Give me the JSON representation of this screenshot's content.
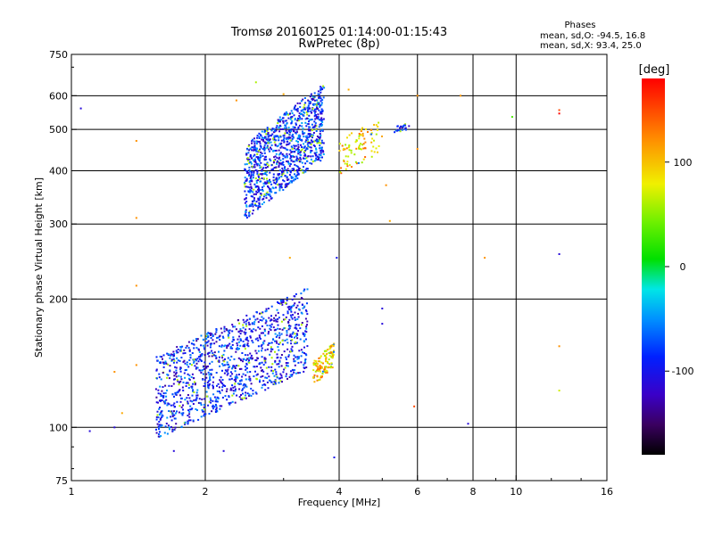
{
  "chart_data": {
    "type": "scatter",
    "title": "Tromsø 20160125 01:14:00-01:15:43",
    "subtitle": "RwPretec (8p)",
    "xlabel": "Frequency [MHz]",
    "ylabel": "Stationary phase Virtual Height [km]",
    "x_scale": "log",
    "y_scale": "log",
    "xlim": [
      1,
      16
    ],
    "ylim": [
      75,
      750
    ],
    "x_ticks": [
      1,
      2,
      4,
      6,
      8,
      10,
      16
    ],
    "y_ticks": [
      75,
      100,
      200,
      300,
      400,
      500,
      600,
      750
    ],
    "grid": true,
    "legend": {
      "heading": "Phases",
      "lines": [
        "mean, sd,O:  -94.5,  16.8",
        "mean, sd,X:   93.4,  25.0"
      ]
    },
    "colorbar": {
      "label": "[deg]",
      "range": [
        -180,
        180
      ],
      "ticks": [
        100,
        0,
        -100
      ]
    },
    "point_clusters": [
      {
        "fmin": 2.45,
        "fmax": 3.7,
        "hmin": 310,
        "hmax": 650,
        "phase_mean": -85,
        "count": 1100
      },
      {
        "fmin": 1.55,
        "fmax": 3.4,
        "hmin": 95,
        "hmax": 215,
        "phase_mean": -90,
        "count": 1200
      },
      {
        "fmin": 3.5,
        "fmax": 3.9,
        "hmin": 125,
        "hmax": 160,
        "phase_mean": 95,
        "count": 120
      },
      {
        "fmin": 4.0,
        "fmax": 5.0,
        "hmin": 380,
        "hmax": 560,
        "phase_mean": 95,
        "count": 90
      },
      {
        "fmin": 5.3,
        "fmax": 5.8,
        "hmin": 490,
        "hmax": 520,
        "phase_mean": -100,
        "count": 25
      }
    ],
    "sparse_points": [
      {
        "x": 1.05,
        "y": 560,
        "phase": -110
      },
      {
        "x": 1.4,
        "y": 470,
        "phase": 120
      },
      {
        "x": 1.4,
        "y": 310,
        "phase": 120
      },
      {
        "x": 1.4,
        "y": 215,
        "phase": 120
      },
      {
        "x": 1.4,
        "y": 140,
        "phase": 120
      },
      {
        "x": 1.25,
        "y": 135,
        "phase": 120
      },
      {
        "x": 1.3,
        "y": 108,
        "phase": 110
      },
      {
        "x": 1.1,
        "y": 98,
        "phase": -110
      },
      {
        "x": 1.25,
        "y": 100,
        "phase": -110
      },
      {
        "x": 1.7,
        "y": 88,
        "phase": -110
      },
      {
        "x": 2.2,
        "y": 88,
        "phase": -110
      },
      {
        "x": 2.35,
        "y": 585,
        "phase": 120
      },
      {
        "x": 3.0,
        "y": 605,
        "phase": 110
      },
      {
        "x": 4.2,
        "y": 620,
        "phase": 110
      },
      {
        "x": 3.95,
        "y": 250,
        "phase": -100
      },
      {
        "x": 3.9,
        "y": 85,
        "phase": -100
      },
      {
        "x": 5.1,
        "y": 370,
        "phase": 120
      },
      {
        "x": 5.2,
        "y": 305,
        "phase": 110
      },
      {
        "x": 5.0,
        "y": 190,
        "phase": -110
      },
      {
        "x": 5.0,
        "y": 175,
        "phase": -110
      },
      {
        "x": 6.0,
        "y": 450,
        "phase": 120
      },
      {
        "x": 6.0,
        "y": 600,
        "phase": 120
      },
      {
        "x": 5.9,
        "y": 112,
        "phase": 150
      },
      {
        "x": 7.5,
        "y": 600,
        "phase": 120
      },
      {
        "x": 7.8,
        "y": 102,
        "phase": -110
      },
      {
        "x": 8.5,
        "y": 250,
        "phase": 120
      },
      {
        "x": 9.8,
        "y": 535,
        "phase": 30
      },
      {
        "x": 12.5,
        "y": 555,
        "phase": 150
      },
      {
        "x": 12.5,
        "y": 545,
        "phase": 180
      },
      {
        "x": 12.5,
        "y": 255,
        "phase": -110
      },
      {
        "x": 12.5,
        "y": 155,
        "phase": 120
      },
      {
        "x": 12.5,
        "y": 122,
        "phase": 70
      },
      {
        "x": 2.6,
        "y": 645,
        "phase": 60
      },
      {
        "x": 3.1,
        "y": 250,
        "phase": 110
      }
    ]
  }
}
